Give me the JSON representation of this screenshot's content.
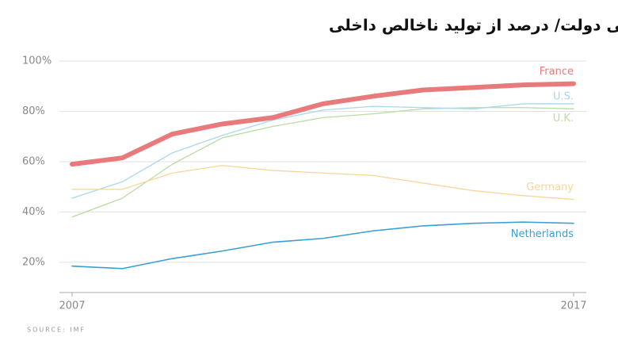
{
  "chart_data": {
    "type": "line",
    "title": "بدهی دولت/ درصد از تولید ناخالص داخلی",
    "source": "SOURCE: IMF",
    "x": [
      2007,
      2008,
      2009,
      2010,
      2011,
      2012,
      2013,
      2014,
      2015,
      2016,
      2017
    ],
    "xlim": [
      2007,
      2017
    ],
    "xticks": [
      2007,
      2017
    ],
    "ylim": [
      8,
      100
    ],
    "yticks": [
      {
        "value": 20,
        "label": "20%"
      },
      {
        "value": 40,
        "label": "40%"
      },
      {
        "value": 60,
        "label": "60%"
      },
      {
        "value": 80,
        "label": "80%"
      },
      {
        "value": 100,
        "label": "100%"
      }
    ],
    "grid": true,
    "series": [
      {
        "name": "U.K.",
        "color": "#b9dca3",
        "values": [
          38,
          45.5,
          59,
          69.5,
          74,
          77.5,
          79,
          81,
          81.5,
          81.5,
          81
        ]
      },
      {
        "name": "U.S.",
        "color": "#a9d7ee",
        "values": [
          45.5,
          52,
          63.5,
          70.5,
          76.5,
          80.5,
          82,
          81.5,
          81,
          83,
          83
        ]
      },
      {
        "name": "Germany",
        "color": "#f7d69b",
        "values": [
          49,
          49,
          55.5,
          58.5,
          56.5,
          55.5,
          54.5,
          51.5,
          48.5,
          46.5,
          45
        ]
      },
      {
        "name": "Netherlands",
        "color": "#3a9fd3",
        "values": [
          18.5,
          17.5,
          21.5,
          24.5,
          28,
          29.5,
          32.5,
          34.5,
          35.5,
          36,
          35.5
        ]
      },
      {
        "name": "France",
        "color": "#e87a7c",
        "values": [
          59,
          61.5,
          71,
          75,
          77.5,
          83,
          86,
          88.5,
          89.5,
          90.5,
          91
        ]
      }
    ]
  }
}
